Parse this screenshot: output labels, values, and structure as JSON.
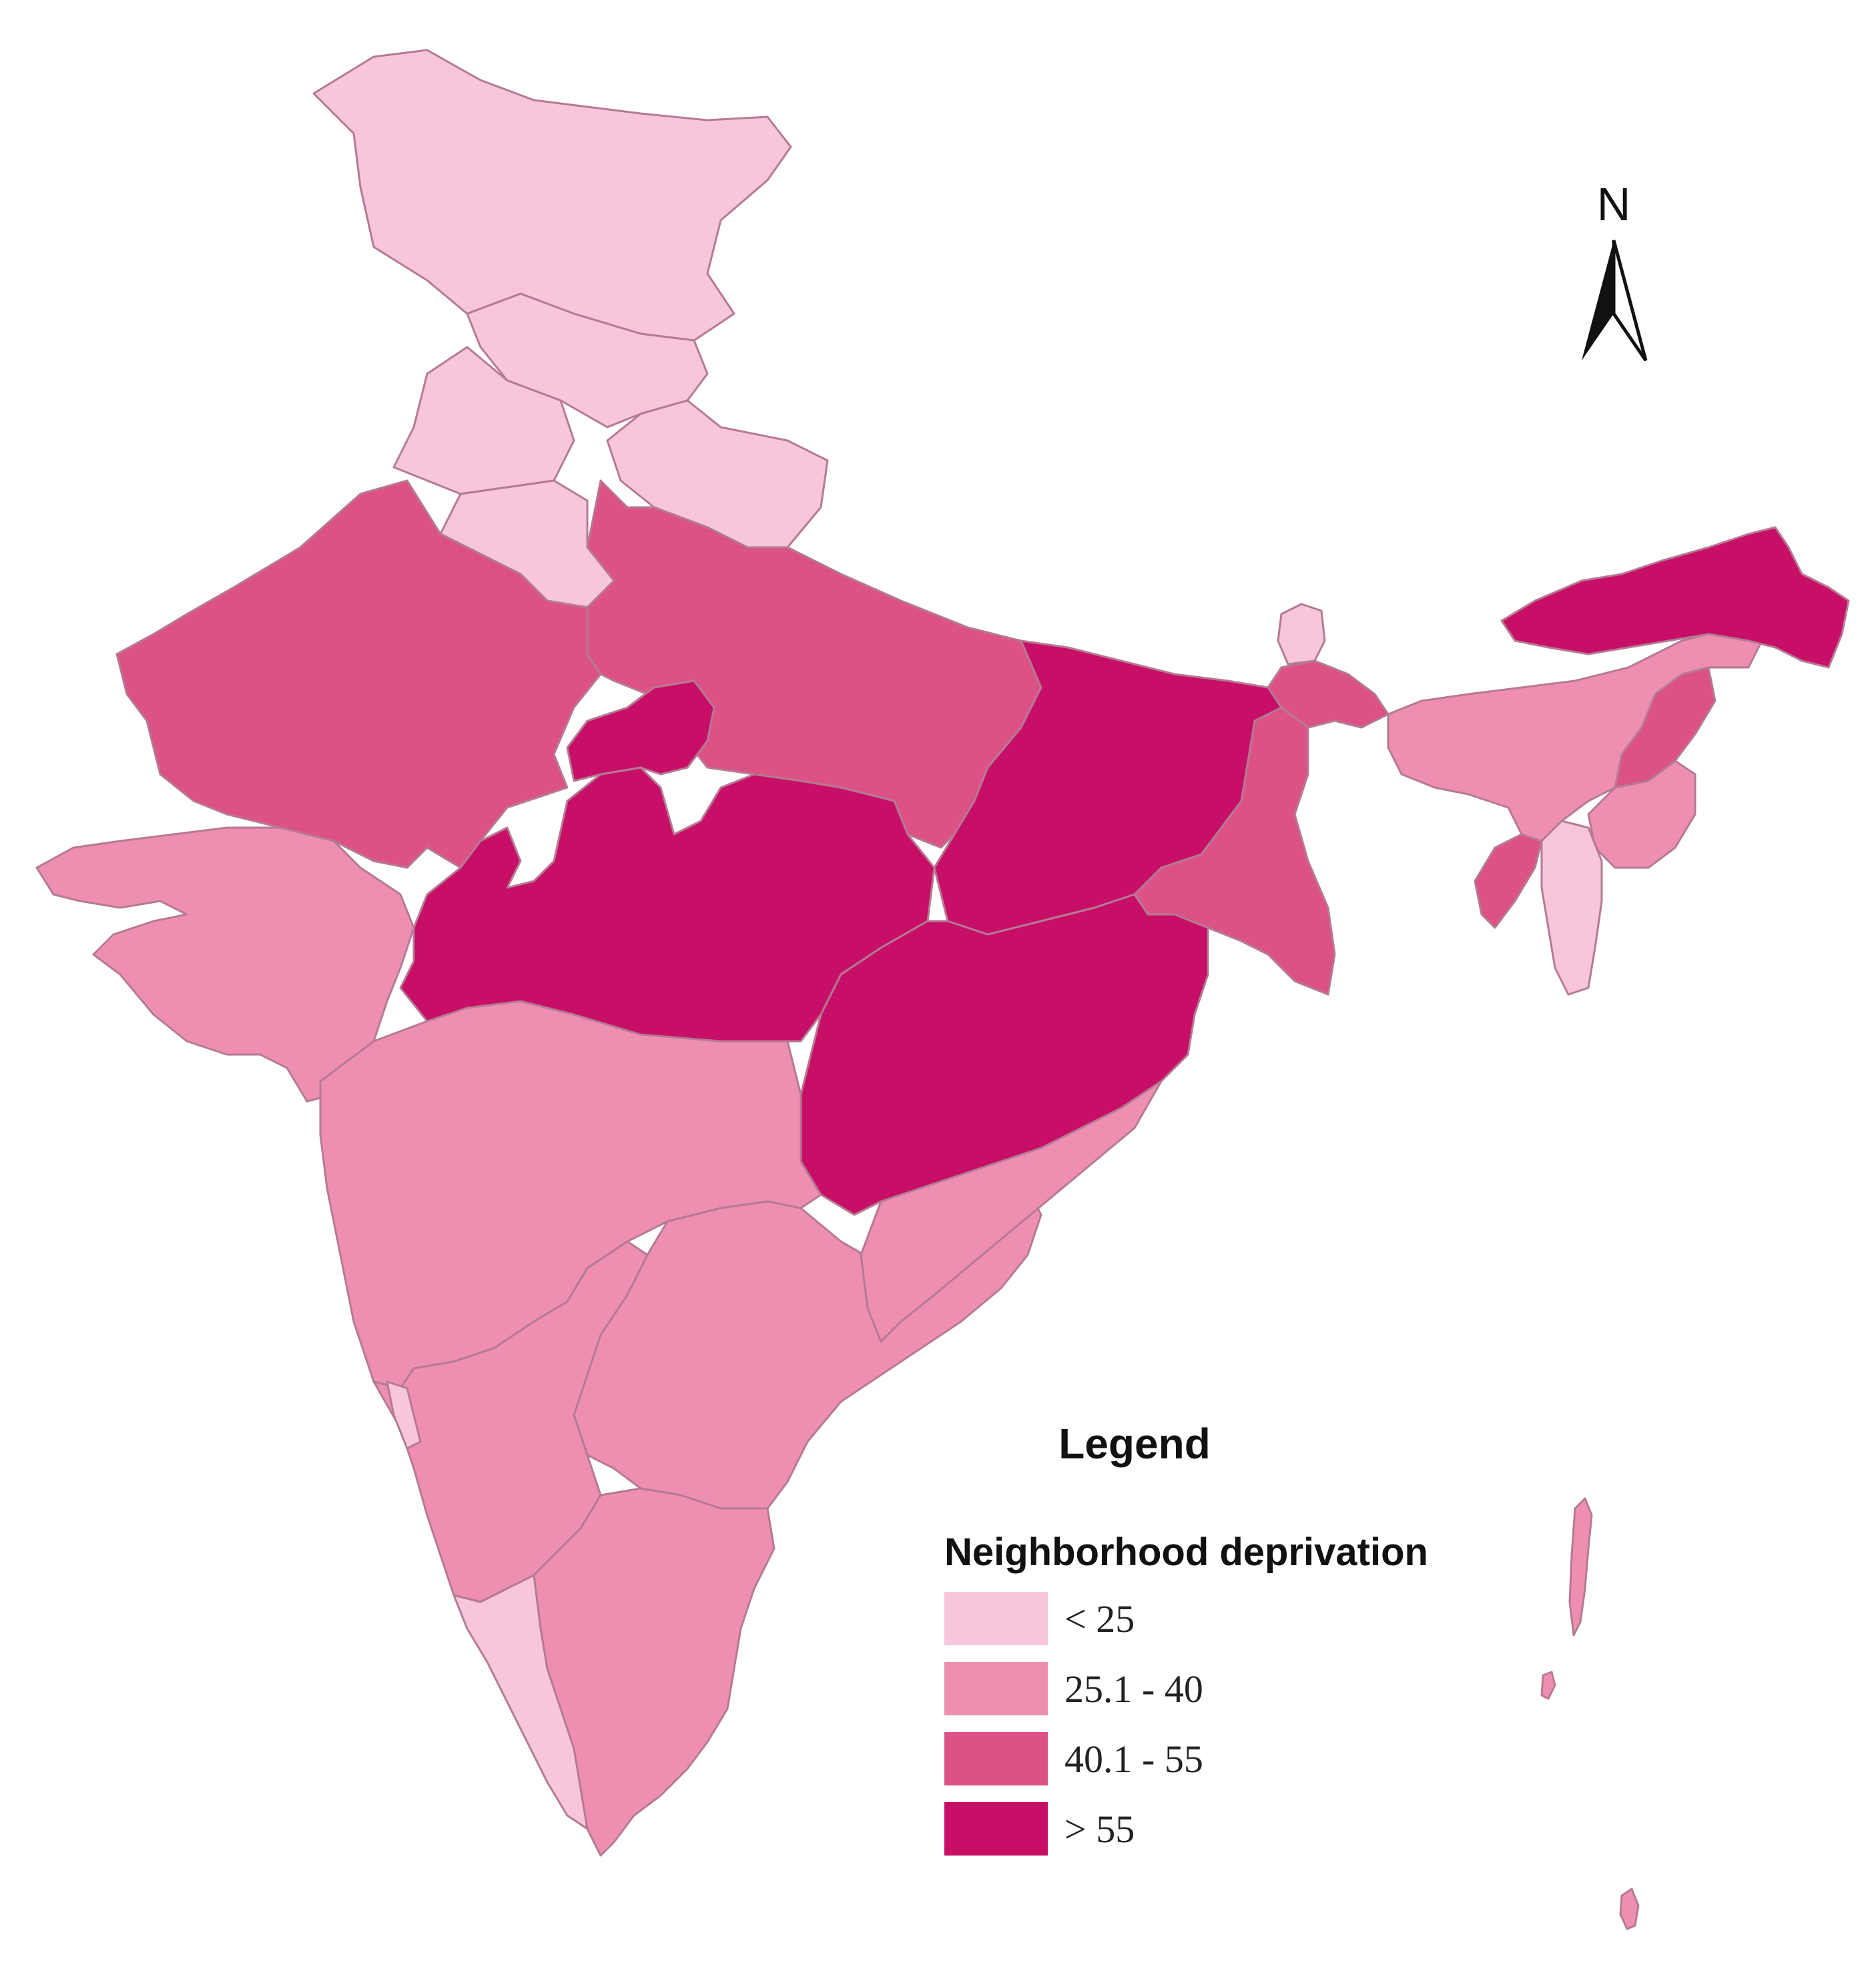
{
  "colors": {
    "class1": "#f7c6dc",
    "class2": "#ee8fb1",
    "class3": "#dc5287",
    "class4": "#c70f67",
    "border": "#b57a93"
  },
  "legend": {
    "title": "Legend",
    "subtitle": "Neighborhood deprivation",
    "items": [
      {
        "label": "< 25",
        "color": "#f7c6dc"
      },
      {
        "label": "25.1 - 40",
        "color": "#ee8fb1"
      },
      {
        "label": "40.1 - 55",
        "color": "#dc5287"
      },
      {
        "label": "> 55",
        "color": "#c70f67"
      }
    ]
  },
  "north_arrow": {
    "label": "N"
  }
}
